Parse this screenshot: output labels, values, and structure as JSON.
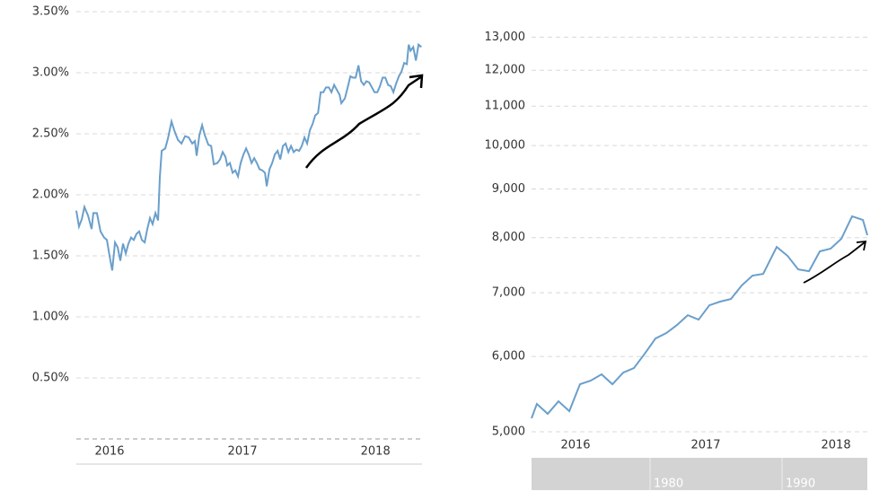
{
  "chart_data": [
    {
      "type": "line",
      "xlim": [
        2015.75,
        2018.35
      ],
      "xticks": [
        2016,
        2017,
        2018
      ],
      "ylim": [
        0,
        3.5
      ],
      "yticks": [
        {
          "value": 0.5,
          "label": "0.50%"
        },
        {
          "value": 1,
          "label": "1.00%"
        },
        {
          "value": 1.5,
          "label": "1.50%"
        },
        {
          "value": 2,
          "label": "2.00%"
        },
        {
          "value": 2.5,
          "label": "2.50%"
        },
        {
          "value": 3,
          "label": "3.00%"
        },
        {
          "value": 3.5,
          "label": "3.50%"
        }
      ],
      "grid": true,
      "x": [
        2015.75,
        2015.77,
        2015.791,
        2015.811,
        2015.838,
        2015.865,
        2015.878,
        2015.905,
        2015.932,
        2015.959,
        2015.98,
        2016.0,
        2016.02,
        2016.041,
        2016.061,
        2016.081,
        2016.101,
        2016.122,
        2016.142,
        2016.162,
        2016.182,
        2016.203,
        2016.223,
        2016.243,
        2016.264,
        2016.284,
        2016.304,
        2016.324,
        2016.345,
        2016.365,
        2016.378,
        2016.392,
        2016.419,
        2016.439,
        2016.466,
        2016.486,
        2016.514,
        2016.541,
        2016.568,
        2016.595,
        2016.622,
        2016.642,
        2016.655,
        2016.676,
        2016.696,
        2016.716,
        2016.743,
        2016.764,
        2016.784,
        2016.811,
        2016.831,
        2016.851,
        2016.872,
        2016.885,
        2016.905,
        2016.926,
        2016.946,
        2016.966,
        2016.986,
        2017.007,
        2017.027,
        2017.047,
        2017.068,
        2017.088,
        2017.108,
        2017.128,
        2017.149,
        2017.169,
        2017.182,
        2017.203,
        2017.223,
        2017.243,
        2017.264,
        2017.284,
        2017.304,
        2017.324,
        2017.345,
        2017.365,
        2017.385,
        2017.405,
        2017.426,
        2017.446,
        2017.466,
        2017.486,
        2017.507,
        2017.527,
        2017.547,
        2017.568,
        2017.588,
        2017.608,
        2017.628,
        2017.649,
        2017.669,
        2017.689,
        2017.709,
        2017.73,
        2017.743,
        2017.77,
        2017.791,
        2017.811,
        2017.831,
        2017.851,
        2017.872,
        2017.892,
        2017.912,
        2017.932,
        2017.953,
        2017.973,
        2017.993,
        2018.014,
        2018.034,
        2018.054,
        2018.074,
        2018.095,
        2018.115,
        2018.135,
        2018.155,
        2018.176,
        2018.196,
        2018.216,
        2018.236,
        2018.25,
        2018.264,
        2018.284,
        2018.304,
        2018.324,
        2018.345
      ],
      "series": [
        {
          "color": "#6a9fcb",
          "values": [
            1.87,
            1.74,
            1.8,
            1.9,
            1.83,
            1.72,
            1.85,
            1.85,
            1.7,
            1.65,
            1.63,
            1.5,
            1.38,
            1.61,
            1.57,
            1.46,
            1.6,
            1.52,
            1.6,
            1.65,
            1.63,
            1.68,
            1.7,
            1.63,
            1.61,
            1.72,
            1.81,
            1.76,
            1.85,
            1.79,
            2.14,
            2.36,
            2.38,
            2.46,
            2.6,
            2.53,
            2.45,
            2.42,
            2.48,
            2.47,
            2.42,
            2.44,
            2.32,
            2.49,
            2.57,
            2.49,
            2.41,
            2.4,
            2.25,
            2.26,
            2.29,
            2.35,
            2.31,
            2.24,
            2.26,
            2.18,
            2.2,
            2.15,
            2.26,
            2.33,
            2.38,
            2.33,
            2.26,
            2.3,
            2.26,
            2.21,
            2.2,
            2.18,
            2.07,
            2.21,
            2.26,
            2.33,
            2.36,
            2.29,
            2.4,
            2.42,
            2.35,
            2.4,
            2.35,
            2.37,
            2.36,
            2.4,
            2.47,
            2.42,
            2.53,
            2.58,
            2.65,
            2.67,
            2.84,
            2.84,
            2.88,
            2.88,
            2.84,
            2.9,
            2.86,
            2.82,
            2.75,
            2.79,
            2.88,
            2.97,
            2.96,
            2.96,
            3.06,
            2.93,
            2.9,
            2.93,
            2.92,
            2.88,
            2.84,
            2.84,
            2.89,
            2.96,
            2.96,
            2.9,
            2.89,
            2.84,
            2.91,
            2.97,
            3.01,
            3.08,
            3.07,
            3.23,
            3.18,
            3.21,
            3.1,
            3.23,
            3.21
          ]
        }
      ]
    },
    {
      "type": "line",
      "log_scale": true,
      "xlim": [
        2015.662,
        2018.241
      ],
      "xticks": [
        2016,
        2017,
        2018
      ],
      "ylim": [
        5000,
        13500
      ],
      "yticks": [
        {
          "value": 5000,
          "label": "5,000"
        },
        {
          "value": 6000,
          "label": "6,000"
        },
        {
          "value": 7000,
          "label": "7,000"
        },
        {
          "value": 8000,
          "label": "8,000"
        },
        {
          "value": 9000,
          "label": "9,000"
        },
        {
          "value": 10000,
          "label": "10,000"
        },
        {
          "value": 11000,
          "label": "11,000"
        },
        {
          "value": 12000,
          "label": "12,000"
        },
        {
          "value": 13000,
          "label": "13,000"
        }
      ],
      "grid": true,
      "x": [
        2015.662,
        2015.703,
        2015.786,
        2015.869,
        2015.952,
        2016.034,
        2016.117,
        2016.2,
        2016.283,
        2016.366,
        2016.448,
        2016.531,
        2016.614,
        2016.697,
        2016.779,
        2016.862,
        2016.945,
        2017.028,
        2017.11,
        2017.193,
        2017.276,
        2017.359,
        2017.441,
        2017.545,
        2017.628,
        2017.71,
        2017.793,
        2017.876,
        2017.959,
        2018.041,
        2018.124,
        2018.207,
        2018.241
      ],
      "series": [
        {
          "color": "#6a9fcb",
          "values": [
            5166,
            5349,
            5222,
            5383,
            5256,
            5610,
            5660,
            5746,
            5610,
            5770,
            5833,
            6040,
            6267,
            6350,
            6475,
            6631,
            6560,
            6792,
            6852,
            6896,
            7125,
            7297,
            7328,
            7823,
            7655,
            7409,
            7376,
            7739,
            7790,
            7978,
            8424,
            8351,
            8048
          ]
        }
      ],
      "navigator_labels": [
        "1980",
        "1990"
      ]
    }
  ]
}
